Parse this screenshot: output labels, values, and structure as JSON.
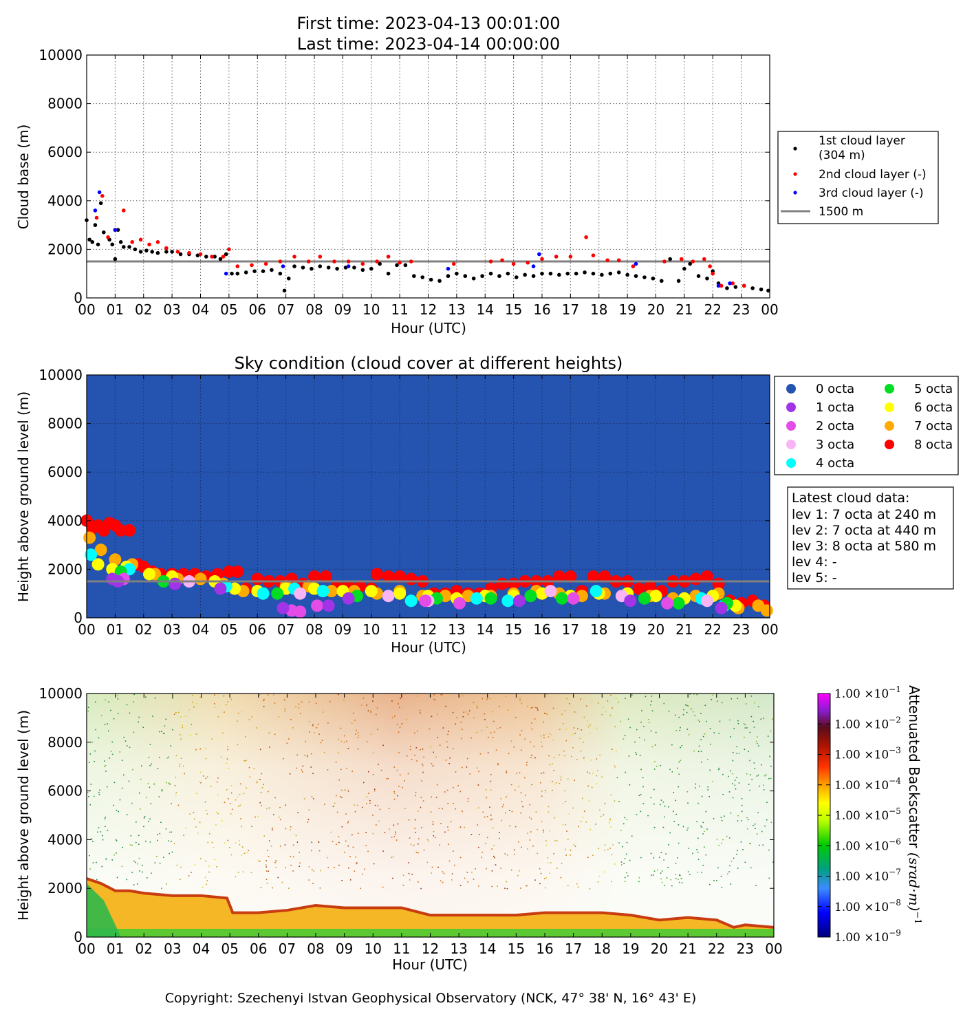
{
  "header": {
    "first_time": "First time: 2023-04-13 00:01:00",
    "last_time": "Last time: 2023-04-14 00:00:00"
  },
  "x_ticks": [
    "00",
    "01",
    "02",
    "03",
    "04",
    "05",
    "06",
    "07",
    "08",
    "09",
    "10",
    "11",
    "12",
    "13",
    "14",
    "15",
    "16",
    "17",
    "18",
    "19",
    "20",
    "21",
    "22",
    "23",
    "00"
  ],
  "y_ticks": [
    "0",
    "2000",
    "4000",
    "6000",
    "8000",
    "10000"
  ],
  "xlabel": "Hour (UTC)",
  "footer": {
    "text": "Copyright: Szechenyi Istvan Geophysical Observatory (NCK, 47° 38' N, 16° 43' E)"
  },
  "colors": {
    "layer1": "#000000",
    "layer2": "#ff0000",
    "layer3": "#0000ff",
    "ref_line": "#808080",
    "sky": "#2453b0"
  },
  "chart_data": [
    {
      "type": "scatter",
      "title": "",
      "xlabel": "Hour (UTC)",
      "ylabel": "Cloud base (m)",
      "xlim": [
        0,
        24
      ],
      "ylim": [
        0,
        10000
      ],
      "grid": true,
      "legend_position": "right",
      "reference_line": {
        "name": "1500 m",
        "value": 1500
      },
      "series": [
        {
          "name": "1st cloud layer (304 m)",
          "legend_lines": [
            "1st cloud layer",
            "(304 m)"
          ],
          "color": "#000000",
          "x": [
            0.0,
            0.1,
            0.2,
            0.3,
            0.4,
            0.5,
            0.6,
            0.8,
            0.9,
            1.0,
            1.1,
            1.2,
            1.3,
            1.5,
            1.7,
            1.9,
            2.1,
            2.3,
            2.5,
            2.8,
            3.0,
            3.3,
            3.6,
            3.9,
            4.2,
            4.5,
            4.7,
            4.9,
            5.1,
            5.3,
            5.6,
            5.9,
            6.2,
            6.5,
            6.8,
            6.95,
            7.1,
            7.3,
            7.6,
            7.9,
            8.2,
            8.5,
            8.8,
            9.1,
            9.4,
            9.7,
            10.0,
            10.3,
            10.6,
            10.9,
            11.2,
            11.5,
            11.8,
            12.1,
            12.4,
            12.7,
            13.0,
            13.3,
            13.6,
            13.9,
            14.2,
            14.5,
            14.8,
            15.1,
            15.4,
            15.7,
            16.0,
            16.3,
            16.6,
            16.9,
            17.2,
            17.5,
            17.8,
            18.1,
            18.4,
            18.7,
            19.0,
            19.3,
            19.6,
            19.9,
            20.2,
            20.5,
            20.8,
            21.0,
            21.2,
            21.5,
            21.8,
            22.0,
            22.2,
            22.5,
            22.8,
            23.1,
            23.4,
            23.7,
            23.95
          ],
          "y": [
            3200,
            2400,
            2300,
            3000,
            2200,
            3900,
            2700,
            2400,
            2200,
            1600,
            2800,
            2300,
            2100,
            2100,
            2000,
            1900,
            1950,
            1900,
            1850,
            1900,
            1900,
            1800,
            1800,
            1750,
            1700,
            1700,
            1600,
            1800,
            1000,
            1000,
            1050,
            1100,
            1100,
            1150,
            1000,
            300,
            800,
            1300,
            1250,
            1200,
            1300,
            1250,
            1200,
            1250,
            1250,
            1150,
            1200,
            1400,
            1000,
            1350,
            1350,
            900,
            850,
            750,
            700,
            900,
            1000,
            900,
            800,
            900,
            1000,
            900,
            1000,
            850,
            950,
            900,
            1000,
            1000,
            950,
            1000,
            1000,
            1050,
            1000,
            950,
            1000,
            1050,
            950,
            900,
            850,
            800,
            700,
            1600,
            700,
            1200,
            1400,
            900,
            800,
            1100,
            600,
            400,
            450,
            500,
            400,
            350,
            300
          ]
        },
        {
          "name": "2nd cloud layer (-)",
          "color": "#ff0000",
          "x": [
            0.35,
            0.55,
            0.75,
            1.0,
            1.3,
            1.6,
            1.9,
            2.2,
            2.5,
            2.8,
            3.2,
            3.6,
            4.0,
            4.4,
            4.8,
            5.0,
            5.3,
            5.8,
            6.3,
            6.8,
            7.3,
            7.8,
            8.2,
            8.7,
            9.2,
            9.7,
            10.2,
            10.6,
            11.0,
            11.4,
            12.9,
            14.2,
            14.6,
            15.0,
            15.5,
            16.0,
            16.5,
            17.0,
            17.55,
            17.8,
            18.3,
            18.7,
            19.2,
            20.3,
            20.9,
            21.3,
            21.7,
            21.9,
            22.0,
            22.3,
            22.7,
            23.1
          ],
          "y": [
            3300,
            4200,
            2500,
            2800,
            3600,
            2300,
            2400,
            2200,
            2300,
            2050,
            1900,
            1850,
            1800,
            1700,
            1700,
            2000,
            1300,
            1350,
            1400,
            1500,
            1700,
            1500,
            1700,
            1500,
            1500,
            1400,
            1500,
            1700,
            1450,
            1500,
            1400,
            1500,
            1550,
            1400,
            1450,
            1600,
            1700,
            1700,
            2500,
            1750,
            1550,
            1550,
            1300,
            1500,
            1600,
            1500,
            1600,
            1300,
            1000,
            500,
            600,
            500
          ]
        },
        {
          "name": "3rd cloud layer (-)",
          "color": "#0000ff",
          "x": [
            0.3,
            0.45,
            1.0,
            4.9,
            6.9,
            9.2,
            12.7,
            15.7,
            15.9,
            19.3,
            22.2,
            22.6
          ],
          "y": [
            3600,
            4350,
            2800,
            1000,
            1300,
            1300,
            1200,
            1300,
            1800,
            1400,
            500,
            600
          ]
        }
      ]
    },
    {
      "type": "scatter",
      "title": "Sky condition (cloud cover at different heights)",
      "xlabel": "Hour (UTC)",
      "ylabel": "Height above ground level (m)",
      "xlim": [
        0,
        24
      ],
      "ylim": [
        0,
        10000
      ],
      "grid": true,
      "background": "#2453b0",
      "reference_line": {
        "name": "1500 m",
        "value": 1500
      },
      "legend": [
        {
          "label": "0 octa",
          "color": "#2453b0"
        },
        {
          "label": "1 octa",
          "color": "#a034e6"
        },
        {
          "label": "2 octa",
          "color": "#e44ce8"
        },
        {
          "label": "3 octa",
          "color": "#f8b4f4"
        },
        {
          "label": "4 octa",
          "color": "#00ffff"
        },
        {
          "label": "5 octa",
          "color": "#00dd22"
        },
        {
          "label": "6 octa",
          "color": "#ffff00"
        },
        {
          "label": "7 octa",
          "color": "#ffaa00"
        },
        {
          "label": "8 octa",
          "color": "#ff0000"
        }
      ],
      "series": [
        {
          "name": "8 octa",
          "color": "#ff0000",
          "x": [
            0.0,
            0.2,
            0.4,
            0.6,
            0.8,
            1.0,
            1.2,
            1.5,
            1.8,
            2.0,
            2.3,
            2.6,
            3.0,
            3.4,
            3.8,
            4.2,
            4.6,
            5.0,
            5.3,
            5.6,
            6.0,
            6.4,
            6.8,
            7.2,
            7.6,
            8.0,
            8.4,
            8.8,
            9.2,
            9.6,
            10.0,
            10.2,
            10.6,
            11.0,
            11.4,
            11.8,
            12.2,
            12.6,
            13.0,
            13.4,
            13.8,
            14.2,
            14.6,
            15.0,
            15.4,
            15.8,
            16.2,
            16.6,
            17.0,
            17.4,
            17.8,
            18.2,
            18.6,
            19.0,
            19.4,
            19.8,
            20.2,
            20.6,
            21.0,
            21.4,
            21.8,
            22.2,
            22.6,
            23.0,
            23.4,
            23.8
          ],
          "y": [
            4000,
            3700,
            3800,
            3600,
            3900,
            3800,
            3600,
            3600,
            2200,
            2100,
            1900,
            1800,
            1800,
            1800,
            1800,
            1700,
            1800,
            1900,
            1900,
            1200,
            1600,
            1500,
            1500,
            1600,
            1400,
            1700,
            1700,
            1300,
            1300,
            1300,
            1200,
            1800,
            1700,
            1700,
            1600,
            1500,
            1000,
            1000,
            1100,
            1000,
            1000,
            1200,
            1400,
            1400,
            1500,
            1500,
            1500,
            1700,
            1700,
            1100,
            1700,
            1700,
            1500,
            1500,
            1200,
            1300,
            1100,
            1500,
            1500,
            1600,
            1700,
            1400,
            700,
            600,
            700,
            500
          ]
        },
        {
          "name": "7 octa",
          "color": "#ffaa00",
          "x": [
            0.1,
            0.5,
            1.0,
            1.6,
            2.4,
            3.2,
            4.0,
            4.8,
            5.5,
            6.2,
            7.0,
            7.8,
            8.6,
            9.4,
            10.2,
            11.0,
            11.8,
            12.6,
            13.4,
            14.2,
            15.0,
            15.8,
            16.6,
            17.4,
            18.2,
            19.0,
            19.8,
            20.6,
            21.4,
            22.2,
            22.9,
            23.6,
            23.9
          ],
          "y": [
            3300,
            2800,
            2400,
            2200,
            1800,
            1600,
            1600,
            1400,
            1100,
            1000,
            1300,
            1300,
            1100,
            1100,
            1000,
            1100,
            900,
            900,
            900,
            900,
            1000,
            1100,
            1000,
            900,
            1000,
            1000,
            900,
            800,
            900,
            1000,
            400,
            500,
            300
          ]
        },
        {
          "name": "6 octa",
          "color": "#ffff00",
          "x": [
            0.4,
            0.9,
            1.4,
            2.2,
            3.0,
            4.5,
            5.2,
            6.0,
            7.0,
            8.0,
            9.0,
            10.0,
            11.0,
            12.0,
            13.0,
            14.0,
            15.0,
            16.0,
            17.0,
            18.0,
            19.0,
            20.0,
            21.0,
            22.0,
            22.8
          ],
          "y": [
            2200,
            2000,
            2100,
            1800,
            1700,
            1500,
            1200,
            1100,
            1200,
            1200,
            1100,
            1100,
            1000,
            900,
            800,
            900,
            900,
            1000,
            900,
            1000,
            1000,
            900,
            800,
            900,
            500
          ]
        },
        {
          "name": "4 octa",
          "color": "#00ffff",
          "x": [
            0.15,
            1.5,
            4.9,
            6.2,
            7.3,
            8.3,
            11.4,
            13.7,
            14.8,
            17.9,
            21.6,
            22.4
          ],
          "y": [
            2600,
            2000,
            1300,
            1000,
            1200,
            1100,
            700,
            800,
            700,
            1100,
            800,
            500
          ]
        },
        {
          "name": "5 octa",
          "color": "#00dd22",
          "x": [
            1.2,
            2.7,
            6.7,
            9.5,
            12.3,
            14.2,
            15.6,
            16.7,
            19.6,
            20.8,
            22.5
          ],
          "y": [
            1900,
            1500,
            1000,
            900,
            800,
            800,
            900,
            800,
            800,
            600,
            600
          ]
        },
        {
          "name": "3 octa",
          "color": "#f8b4f4",
          "x": [
            3.6,
            7.5,
            10.6,
            12.0,
            16.3,
            18.8,
            21.8
          ],
          "y": [
            1500,
            1000,
            900,
            700,
            1100,
            900,
            700
          ]
        },
        {
          "name": "2 octa",
          "color": "#e44ce8",
          "x": [
            1.3,
            7.2,
            7.5,
            8.1,
            11.9,
            13.1,
            17.1,
            20.4
          ],
          "y": [
            1600,
            300,
            250,
            500,
            700,
            600,
            800,
            600
          ]
        },
        {
          "name": "1 octa",
          "color": "#a034e6",
          "x": [
            0.9,
            1.1,
            3.1,
            4.7,
            6.9,
            8.5,
            9.2,
            15.2,
            19.1,
            22.3
          ],
          "y": [
            1600,
            1500,
            1400,
            1200,
            400,
            500,
            800,
            700,
            700,
            400
          ]
        }
      ]
    },
    {
      "type": "heatmap",
      "title": "",
      "xlabel": "Hour (UTC)",
      "ylabel": "Height above ground level (m)",
      "xlim": [
        0,
        24
      ],
      "ylim": [
        0,
        10000
      ],
      "colorbar": {
        "label_text": "Attenuated Backscatter",
        "label_units": "(srad·m)",
        "label_exp": "−1",
        "scale": "log",
        "ticks": [
          {
            "mant": "1.00",
            "exp": "−9"
          },
          {
            "mant": "1.00",
            "exp": "−8"
          },
          {
            "mant": "1.00",
            "exp": "−7"
          },
          {
            "mant": "1.00",
            "exp": "−6"
          },
          {
            "mant": "1.00",
            "exp": "−5"
          },
          {
            "mant": "1.00",
            "exp": "−4"
          },
          {
            "mant": "1.00",
            "exp": "−3"
          },
          {
            "mant": "1.00",
            "exp": "−2"
          },
          {
            "mant": "1.00",
            "exp": "−1"
          }
        ]
      },
      "cloud_base_profile": {
        "x": [
          0,
          0.5,
          1,
          1.5,
          2,
          3,
          4,
          4.9,
          5.1,
          6,
          7,
          8,
          9,
          10,
          11,
          12,
          13,
          14,
          15,
          16,
          17,
          18,
          19,
          20,
          21,
          22,
          22.6,
          23,
          24
        ],
        "y": [
          2400,
          2200,
          1900,
          1900,
          1800,
          1700,
          1700,
          1600,
          1000,
          1000,
          1100,
          1300,
          1200,
          1200,
          1200,
          900,
          900,
          900,
          900,
          1000,
          1000,
          1000,
          900,
          700,
          800,
          700,
          400,
          500,
          400
        ]
      }
    }
  ],
  "panel2_info": {
    "title": "Latest cloud data:",
    "lines": [
      "lev 1: 7 octa at 240 m",
      "lev 2: 7 octa at 440 m",
      "lev 3: 8 octa at 580 m",
      "lev 4: -",
      "lev 5: -"
    ]
  }
}
